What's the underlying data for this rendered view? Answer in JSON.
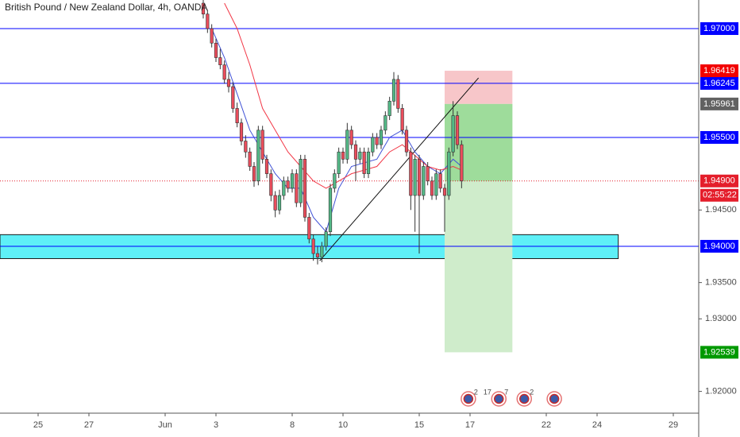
{
  "chart_data": {
    "type": "candlestick",
    "title": "British Pound / New Zealand Dollar, 4h, OANDA",
    "up_color": "#53b987",
    "down_color": "#eb4d5c",
    "x": [
      39,
      40,
      41,
      42,
      43,
      44,
      45,
      46,
      47,
      48,
      49,
      50,
      51,
      52,
      53,
      54,
      55,
      56,
      57,
      58,
      59,
      60,
      61,
      62,
      63,
      64,
      65,
      66,
      67,
      68,
      69,
      70,
      71,
      72,
      73,
      74,
      75,
      76,
      77,
      78,
      79,
      80,
      81,
      82,
      83,
      84,
      85,
      86,
      87,
      88,
      89,
      90,
      91,
      92,
      93,
      94,
      95,
      96,
      97,
      98,
      99,
      100
    ],
    "open": [
      1.9735,
      1.972,
      1.97,
      1.968,
      1.966,
      1.965,
      1.963,
      1.962,
      1.959,
      1.957,
      1.9545,
      1.953,
      1.951,
      1.949,
      1.956,
      1.952,
      1.95,
      1.947,
      1.945,
      1.947,
      1.949,
      1.948,
      1.95,
      1.946,
      1.952,
      1.944,
      1.941,
      1.939,
      1.9385,
      1.94,
      1.942,
      1.948,
      1.95,
      1.953,
      1.952,
      1.956,
      1.954,
      1.952,
      1.953,
      1.95,
      1.953,
      1.955,
      1.954,
      1.956,
      1.958,
      1.96,
      1.963,
      1.959,
      1.956,
      1.953,
      1.947,
      1.952,
      1.947,
      1.951,
      1.949,
      1.947,
      1.95,
      1.948,
      1.947,
      1.953,
      1.958,
      1.954
    ],
    "high": [
      1.9741,
      1.9726,
      1.9706,
      1.9686,
      1.9672,
      1.9656,
      1.964,
      1.9626,
      1.9598,
      1.9576,
      1.9553,
      1.9536,
      1.9516,
      1.9566,
      1.9566,
      1.9526,
      1.9506,
      1.9476,
      1.9478,
      1.9496,
      1.9496,
      1.9506,
      1.9506,
      1.9526,
      1.9526,
      1.9446,
      1.9416,
      1.94,
      1.9406,
      1.9426,
      1.9486,
      1.9506,
      1.9536,
      1.9536,
      1.957,
      1.9566,
      1.9546,
      1.9536,
      1.9536,
      1.9536,
      1.9556,
      1.9556,
      1.9566,
      1.9586,
      1.9606,
      1.964,
      1.9636,
      1.9596,
      1.9566,
      1.9536,
      1.9526,
      1.9526,
      1.9516,
      1.9516,
      1.9496,
      1.9506,
      1.9506,
      1.9486,
      1.9536,
      1.96,
      1.9586,
      1.9546
    ],
    "low": [
      1.9714,
      1.9694,
      1.9674,
      1.9654,
      1.9644,
      1.9624,
      1.9612,
      1.9584,
      1.9564,
      1.9539,
      1.9522,
      1.9504,
      1.9482,
      1.9484,
      1.9514,
      1.9494,
      1.9462,
      1.944,
      1.9444,
      1.9464,
      1.9474,
      1.9474,
      1.9454,
      1.9454,
      1.9434,
      1.9404,
      1.938,
      1.9375,
      1.9378,
      1.9394,
      1.9414,
      1.9474,
      1.9494,
      1.9514,
      1.9514,
      1.9534,
      1.949,
      1.9514,
      1.9494,
      1.9494,
      1.9524,
      1.9534,
      1.9534,
      1.9554,
      1.9574,
      1.9594,
      1.9584,
      1.9554,
      1.9524,
      1.945,
      1.942,
      1.939,
      1.9464,
      1.9484,
      1.9464,
      1.9464,
      1.9474,
      1.942,
      1.9464,
      1.9524,
      1.9534,
      1.948
    ],
    "close": [
      1.972,
      1.97,
      1.968,
      1.966,
      1.965,
      1.963,
      1.962,
      1.959,
      1.957,
      1.9545,
      1.953,
      1.951,
      1.949,
      1.956,
      1.952,
      1.95,
      1.947,
      1.945,
      1.947,
      1.949,
      1.948,
      1.95,
      1.946,
      1.952,
      1.944,
      1.941,
      1.939,
      1.9385,
      1.94,
      1.942,
      1.948,
      1.95,
      1.953,
      1.952,
      1.956,
      1.954,
      1.952,
      1.953,
      1.95,
      1.953,
      1.955,
      1.954,
      1.956,
      1.958,
      1.96,
      1.963,
      1.959,
      1.956,
      1.953,
      1.947,
      1.952,
      1.947,
      1.951,
      1.949,
      1.947,
      1.95,
      1.948,
      1.947,
      1.953,
      1.958,
      1.954,
      1.949
    ],
    "series": [
      {
        "color": "#3f51d6",
        "x": [
          41,
          44,
          47,
          50,
          53,
          56,
          59,
          62,
          65,
          68,
          71,
          74,
          77,
          80,
          83,
          86,
          89,
          92,
          95,
          98,
          100
        ],
        "values": [
          1.97,
          1.966,
          1.961,
          1.956,
          1.953,
          1.95,
          1.948,
          1.948,
          1.944,
          1.942,
          1.948,
          1.951,
          1.9515,
          1.952,
          1.955,
          1.956,
          1.953,
          1.951,
          1.95,
          1.952,
          1.951
        ]
      },
      {
        "color": "#f23645",
        "x": [
          44,
          47,
          50,
          53,
          56,
          59,
          62,
          65,
          68,
          71,
          74,
          77,
          80,
          83,
          86,
          89,
          92,
          95,
          98,
          100
        ],
        "values": [
          1.9735,
          1.97,
          1.965,
          1.959,
          1.956,
          1.953,
          1.951,
          1.949,
          1.948,
          1.949,
          1.95,
          1.9505,
          1.951,
          1.953,
          1.954,
          1.9525,
          1.951,
          1.9505,
          1.951,
          1.9505
        ]
      }
    ],
    "xlim": [
      -9,
      156
    ],
    "xticks": [
      {
        "value": 0,
        "label": "25"
      },
      {
        "value": 12,
        "label": "27"
      },
      {
        "value": 30,
        "label": "Jun"
      },
      {
        "value": 42,
        "label": "3"
      },
      {
        "value": 60,
        "label": "8"
      },
      {
        "value": 72,
        "label": "10"
      },
      {
        "value": 90,
        "label": "15"
      },
      {
        "value": 102,
        "label": "17"
      },
      {
        "value": 120,
        "label": "22"
      },
      {
        "value": 132,
        "label": "24"
      },
      {
        "value": 150,
        "label": "29"
      }
    ],
    "ylim": [
      1.917,
      1.97394
    ],
    "yticks": [
      {
        "value": 1.92,
        "label": "1.92000"
      },
      {
        "value": 1.93,
        "label": "1.93000"
      },
      {
        "value": 1.935,
        "label": "1.93500"
      },
      {
        "value": 1.945,
        "label": "1.94500"
      }
    ],
    "levels": [
      {
        "value": 1.97,
        "label": "1.97000",
        "color": "#0000ff"
      },
      {
        "value": 1.96245,
        "label": "1.96245",
        "color": "#0000ff"
      },
      {
        "value": 1.955,
        "label": "1.95500",
        "color": "#0000ff"
      },
      {
        "value": 1.94,
        "label": "1.94000",
        "color": "#0000ff"
      }
    ],
    "current": {
      "value": 1.949,
      "label": "1.94900",
      "color": "#e41e2b",
      "countdown": "02:55:22"
    },
    "zone": {
      "ylim": [
        1.9383,
        1.9416
      ],
      "xlim": [
        -9,
        137
      ],
      "color": "#5ef0f7"
    },
    "trendline": {
      "x": [
        66.5,
        104
      ],
      "y": [
        1.938,
        1.9632
      ]
    },
    "position": {
      "xlim": [
        96,
        112
      ],
      "entry": {
        "value": 1.95961,
        "label": "1.95961",
        "color": "#616161"
      },
      "stop": {
        "value": 1.96419,
        "label": "1.96419",
        "color": "#f20000"
      },
      "target": {
        "value": 1.92539,
        "label": "1.92539",
        "color": "#009900"
      }
    },
    "events": [
      {
        "x": 101.6,
        "labels": [
          "2",
          "17"
        ]
      },
      {
        "x": 108.8,
        "labels": [
          "7"
        ]
      },
      {
        "x": 114.8,
        "labels": [
          "2"
        ]
      },
      {
        "x": 121.9,
        "labels": []
      }
    ]
  }
}
